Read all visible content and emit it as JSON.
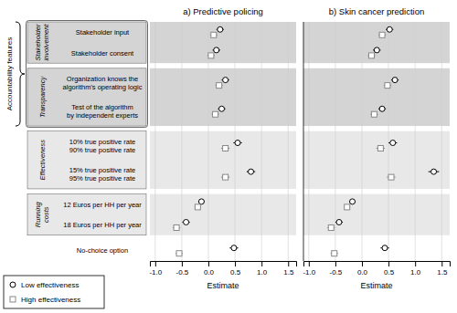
{
  "chart_data": [
    {
      "type": "dot",
      "title": "a) Predictive policing",
      "xlabel": "Estimate",
      "categories": [
        "Stakeholder input",
        "Stakeholder consent",
        "Organization knows the\nalgorithm's operating logic",
        "Test of the algorithm\nby independent experts",
        "10% true positive rate\n90% true positive rate",
        "15% true positive rate\n95% true positive rate",
        "12 Euros per HH per year",
        "18 Euros per HH per year",
        "No-choice option"
      ],
      "groups": [
        {
          "label": "Stakeholder\ninvolvement",
          "rows": [
            0,
            1
          ],
          "color": "#d4d4d4"
        },
        {
          "label": "Transparency",
          "rows": [
            2,
            3
          ],
          "color": "#d4d4d4"
        },
        {
          "label": "Effectiveness",
          "rows": [
            4,
            5
          ],
          "color": "#e8e8e8"
        },
        {
          "label": "Running\ncosts",
          "rows": [
            6,
            7
          ],
          "color": "#e8e8e8"
        }
      ],
      "annotations": [
        {
          "text": "Accountability features",
          "groups": [
            0,
            1
          ]
        }
      ],
      "xlim": [
        -1.1,
        1.65
      ],
      "xticks": [
        {
          "value": -1.0,
          "label": "-1.0"
        },
        -0.5,
        {
          "value": 0.0,
          "label": "0.0"
        },
        0.5,
        {
          "value": 1.0,
          "label": "1.0"
        },
        1.5
      ],
      "grid": true,
      "legend": "lower left",
      "series": [
        {
          "name": "Low effectiveness",
          "color": "black",
          "marker": "circle",
          "values": [
            0.22,
            0.15,
            0.32,
            0.25,
            0.55,
            0.8,
            -0.13,
            -0.42,
            0.48
          ],
          "errors": [
            0.07,
            0.07,
            0.07,
            0.07,
            0.08,
            0.08,
            0.06,
            0.07,
            0.08
          ]
        },
        {
          "name": "High effectiveness",
          "color": "#888888",
          "marker": "square",
          "values": [
            0.1,
            0.05,
            0.2,
            0.13,
            0.32,
            0.32,
            -0.2,
            -0.6,
            -0.55
          ],
          "errors": [
            0.07,
            0.07,
            0.07,
            0.07,
            0.08,
            0.08,
            0.06,
            0.07,
            0.07
          ]
        }
      ]
    },
    {
      "type": "dot",
      "title": "b) Skin cancer prediction",
      "xlabel": "Estimate",
      "xlim": [
        -1.1,
        1.65
      ],
      "xticks": [
        {
          "value": -1.0,
          "label": "-1.0"
        },
        -0.5,
        {
          "value": 0.0,
          "label": "0.0"
        },
        0.5,
        {
          "value": 1.0,
          "label": "1.0"
        },
        1.5
      ],
      "grid": true,
      "series": [
        {
          "color": "black",
          "marker": "circle",
          "values": [
            0.52,
            0.28,
            0.62,
            0.38,
            0.58,
            1.35,
            -0.18,
            -0.43,
            0.43
          ],
          "errors": [
            0.07,
            0.07,
            0.07,
            0.07,
            0.08,
            0.1,
            0.06,
            0.07,
            0.08
          ]
        },
        {
          "color": "#888888",
          "marker": "square",
          "values": [
            0.38,
            0.18,
            0.48,
            0.23,
            0.35,
            0.55,
            -0.28,
            -0.58,
            -0.52
          ],
          "errors": [
            0.07,
            0.07,
            0.07,
            0.07,
            0.08,
            0.08,
            0.06,
            0.07,
            0.07
          ]
        }
      ]
    }
  ]
}
